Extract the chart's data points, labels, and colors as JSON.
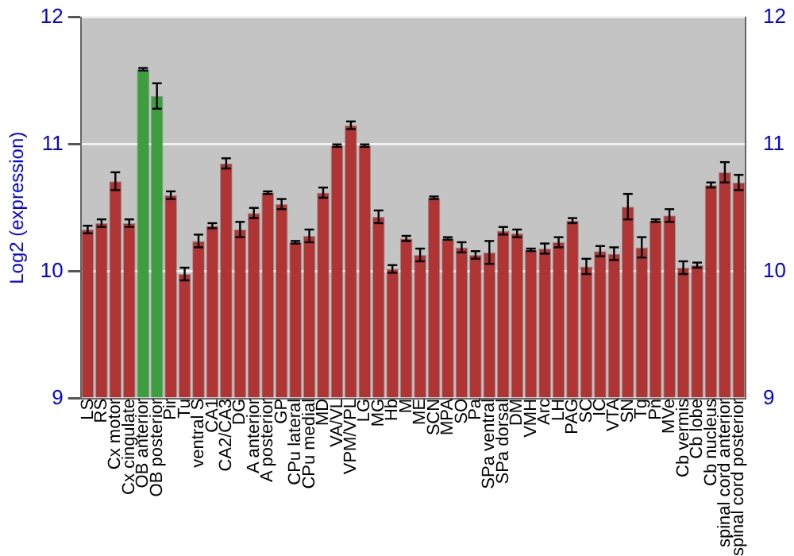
{
  "chart_data": {
    "type": "bar",
    "ylabel": "Log2 (expression)",
    "categories": [
      "LS",
      "RS",
      "Cx motor",
      "Cx cingulate",
      "OB anterior",
      "OB posterior",
      "Pir",
      "Tu",
      "ventral S",
      "CA1",
      "CA2/CA3",
      "DG",
      "A anterior",
      "A posterior",
      "GP",
      "CPu lateral",
      "CPu medial",
      "MD",
      "VA/VL",
      "VPM/VPL",
      "LG",
      "MG",
      "Hb",
      "M",
      "ME",
      "SCN",
      "MPA",
      "SO",
      "Pa",
      "SPa ventral",
      "SPa dorsal",
      "DM",
      "VMH",
      "Arc",
      "LH",
      "PAG",
      "SC",
      "IC",
      "VTA",
      "SN",
      "Tg",
      "Pn",
      "MVe",
      "Cb vermis",
      "Cb lobe",
      "Cb nucleus",
      "spinal cord anterior",
      "spinal cord posterior"
    ],
    "values": [
      10.33,
      10.38,
      10.71,
      10.38,
      11.59,
      11.38,
      10.6,
      9.98,
      10.24,
      10.36,
      10.85,
      10.33,
      10.46,
      10.62,
      10.53,
      10.23,
      10.28,
      10.62,
      10.99,
      11.15,
      10.99,
      10.43,
      10.02,
      10.26,
      10.13,
      10.58,
      10.26,
      10.19,
      10.13,
      10.15,
      10.32,
      10.3,
      10.17,
      10.18,
      10.23,
      10.4,
      10.04,
      10.16,
      10.14,
      10.51,
      10.19,
      10.4,
      10.44,
      10.03,
      10.05,
      10.68,
      10.78,
      10.7
    ],
    "errors": [
      0.03,
      0.03,
      0.07,
      0.03,
      0.01,
      0.1,
      0.03,
      0.05,
      0.05,
      0.02,
      0.04,
      0.06,
      0.04,
      0.01,
      0.04,
      0.01,
      0.05,
      0.04,
      0.01,
      0.03,
      0.01,
      0.05,
      0.03,
      0.02,
      0.05,
      0.01,
      0.01,
      0.04,
      0.03,
      0.09,
      0.03,
      0.03,
      0.01,
      0.04,
      0.04,
      0.02,
      0.06,
      0.04,
      0.05,
      0.1,
      0.08,
      0.01,
      0.05,
      0.05,
      0.02,
      0.02,
      0.08,
      0.06
    ],
    "colors": [
      "#b03434",
      "#b03434",
      "#b03434",
      "#b03434",
      "#3c9e3c",
      "#3c9e3c",
      "#b03434",
      "#b03434",
      "#b03434",
      "#b03434",
      "#b03434",
      "#b03434",
      "#b03434",
      "#b03434",
      "#b03434",
      "#b03434",
      "#b03434",
      "#b03434",
      "#b03434",
      "#b03434",
      "#b03434",
      "#b03434",
      "#b03434",
      "#b03434",
      "#b03434",
      "#b03434",
      "#b03434",
      "#b03434",
      "#b03434",
      "#b03434",
      "#b03434",
      "#b03434",
      "#b03434",
      "#b03434",
      "#b03434",
      "#b03434",
      "#b03434",
      "#b03434",
      "#b03434",
      "#b03434",
      "#b03434",
      "#b03434",
      "#b03434",
      "#b03434",
      "#b03434",
      "#b03434",
      "#b03434",
      "#b03434"
    ],
    "ylim": [
      9,
      12
    ],
    "yticks": [
      9,
      10,
      11,
      12
    ],
    "y2lim": [
      9,
      12
    ],
    "y2ticks": [
      9,
      10,
      11,
      12
    ],
    "grid": "y",
    "legend": false
  }
}
